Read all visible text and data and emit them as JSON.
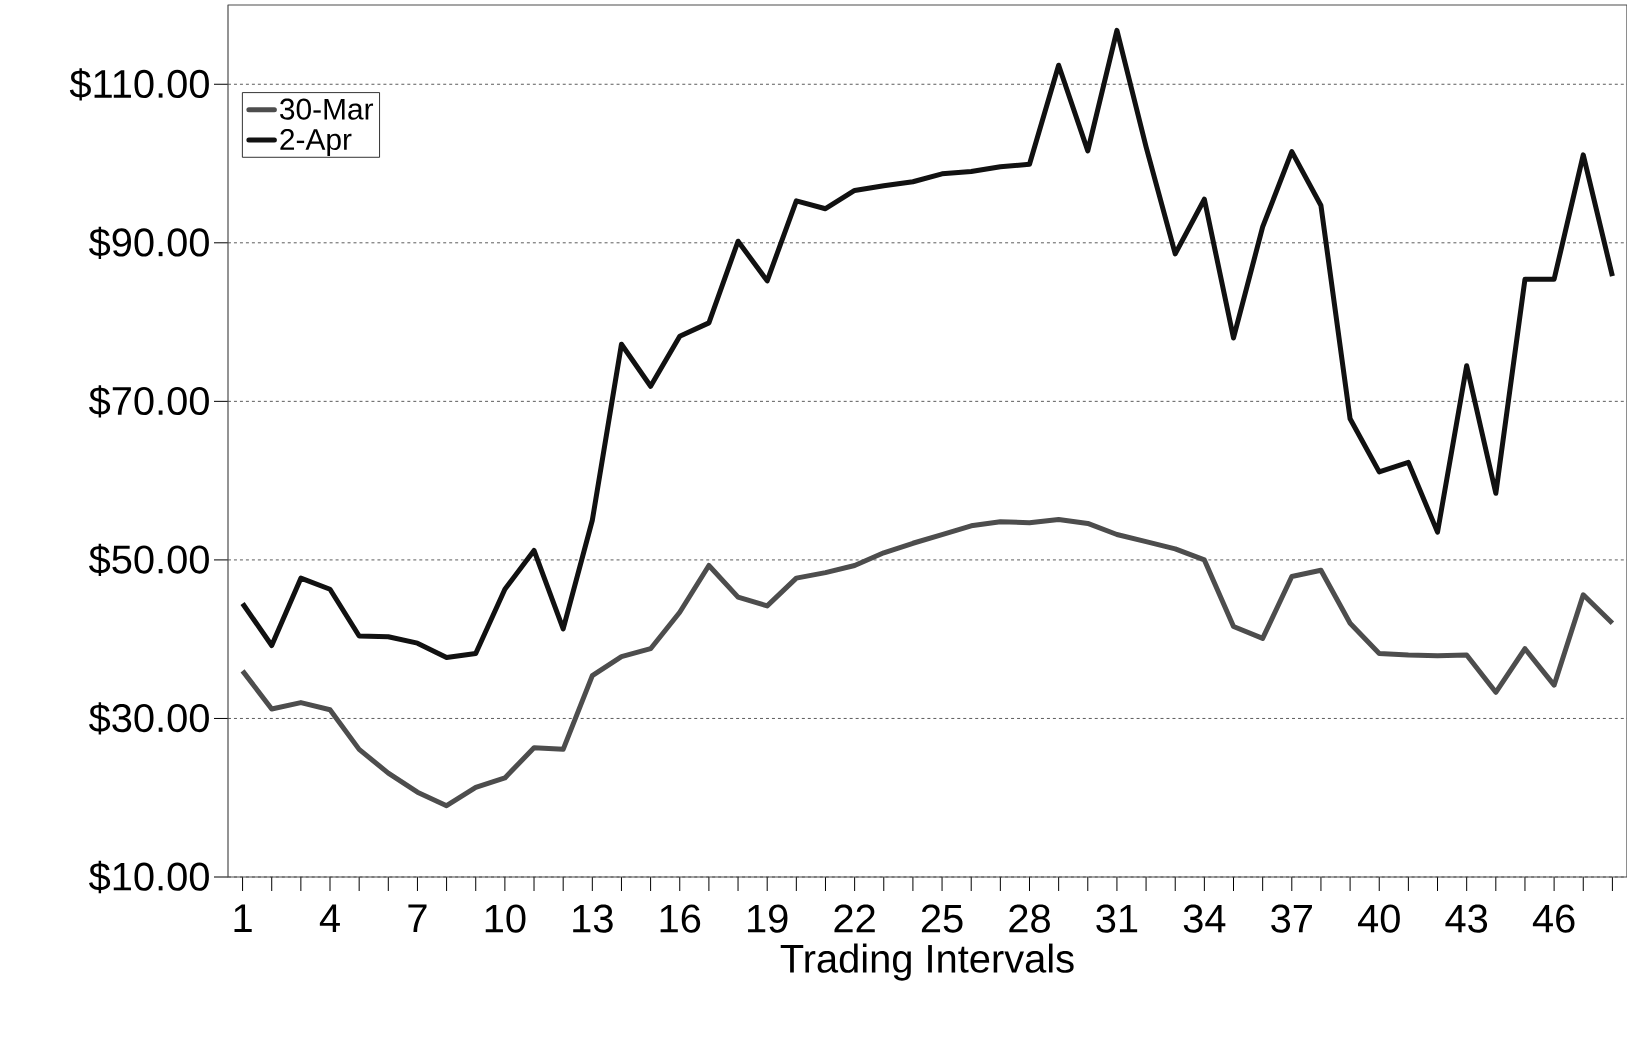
{
  "chart_data": {
    "type": "line",
    "xlabel": "Trading Intervals",
    "categories": [
      "1",
      null,
      null,
      "4",
      null,
      null,
      "7",
      null,
      null,
      "10",
      null,
      null,
      "13",
      null,
      null,
      "16",
      null,
      null,
      "19",
      null,
      null,
      "22",
      null,
      null,
      "25",
      null,
      null,
      "28",
      null,
      null,
      "31",
      null,
      null,
      "34",
      null,
      null,
      "37",
      null,
      null,
      "40",
      null,
      null,
      "43",
      null,
      null,
      "46",
      null,
      null
    ],
    "series": [
      {
        "name": "30-Mar",
        "color": "#4d4d4d",
        "values": [
          36.0,
          31.2,
          32.0,
          31.1,
          26.1,
          23.1,
          20.7,
          19.0,
          21.3,
          22.5,
          26.3,
          26.1,
          35.4,
          37.8,
          38.8,
          43.4,
          49.3,
          45.3,
          44.2,
          47.7,
          48.4,
          49.3,
          50.9,
          52.1,
          53.2,
          54.3,
          54.8,
          54.7,
          55.1,
          54.6,
          53.2,
          52.3,
          51.4,
          50.0,
          41.6,
          40.1,
          47.9,
          48.7,
          42.0,
          38.2,
          38.0,
          37.9,
          38.0,
          33.3,
          38.8,
          34.2,
          45.6,
          42.0
        ]
      },
      {
        "name": "2-Apr",
        "color": "#111111",
        "values": [
          44.5,
          39.2,
          47.7,
          46.3,
          40.4,
          40.3,
          39.5,
          37.7,
          38.2,
          46.3,
          51.2,
          41.3,
          55.0,
          77.2,
          71.9,
          78.2,
          79.9,
          90.2,
          85.2,
          95.3,
          94.3,
          96.6,
          97.2,
          97.7,
          98.7,
          99.0,
          99.6,
          99.9,
          112.4,
          101.6,
          116.8,
          102.1,
          88.6,
          95.5,
          78.0,
          92.0,
          101.5,
          94.7,
          67.8,
          61.1,
          62.3,
          53.5,
          74.5,
          58.4,
          85.4,
          85.4,
          101.1,
          85.8
        ]
      }
    ],
    "ylim": [
      10,
      120
    ],
    "yticks": [
      {
        "value": 10,
        "label": "$10.00"
      },
      {
        "value": 30,
        "label": "$30.00"
      },
      {
        "value": 50,
        "label": "$50.00"
      },
      {
        "value": 70,
        "label": "$70.00"
      },
      {
        "value": 90,
        "label": "$90.00"
      },
      {
        "value": 110,
        "label": "$110.00"
      }
    ],
    "grid": "y",
    "legend": "top left",
    "line_style": "solid",
    "marker": "none"
  }
}
